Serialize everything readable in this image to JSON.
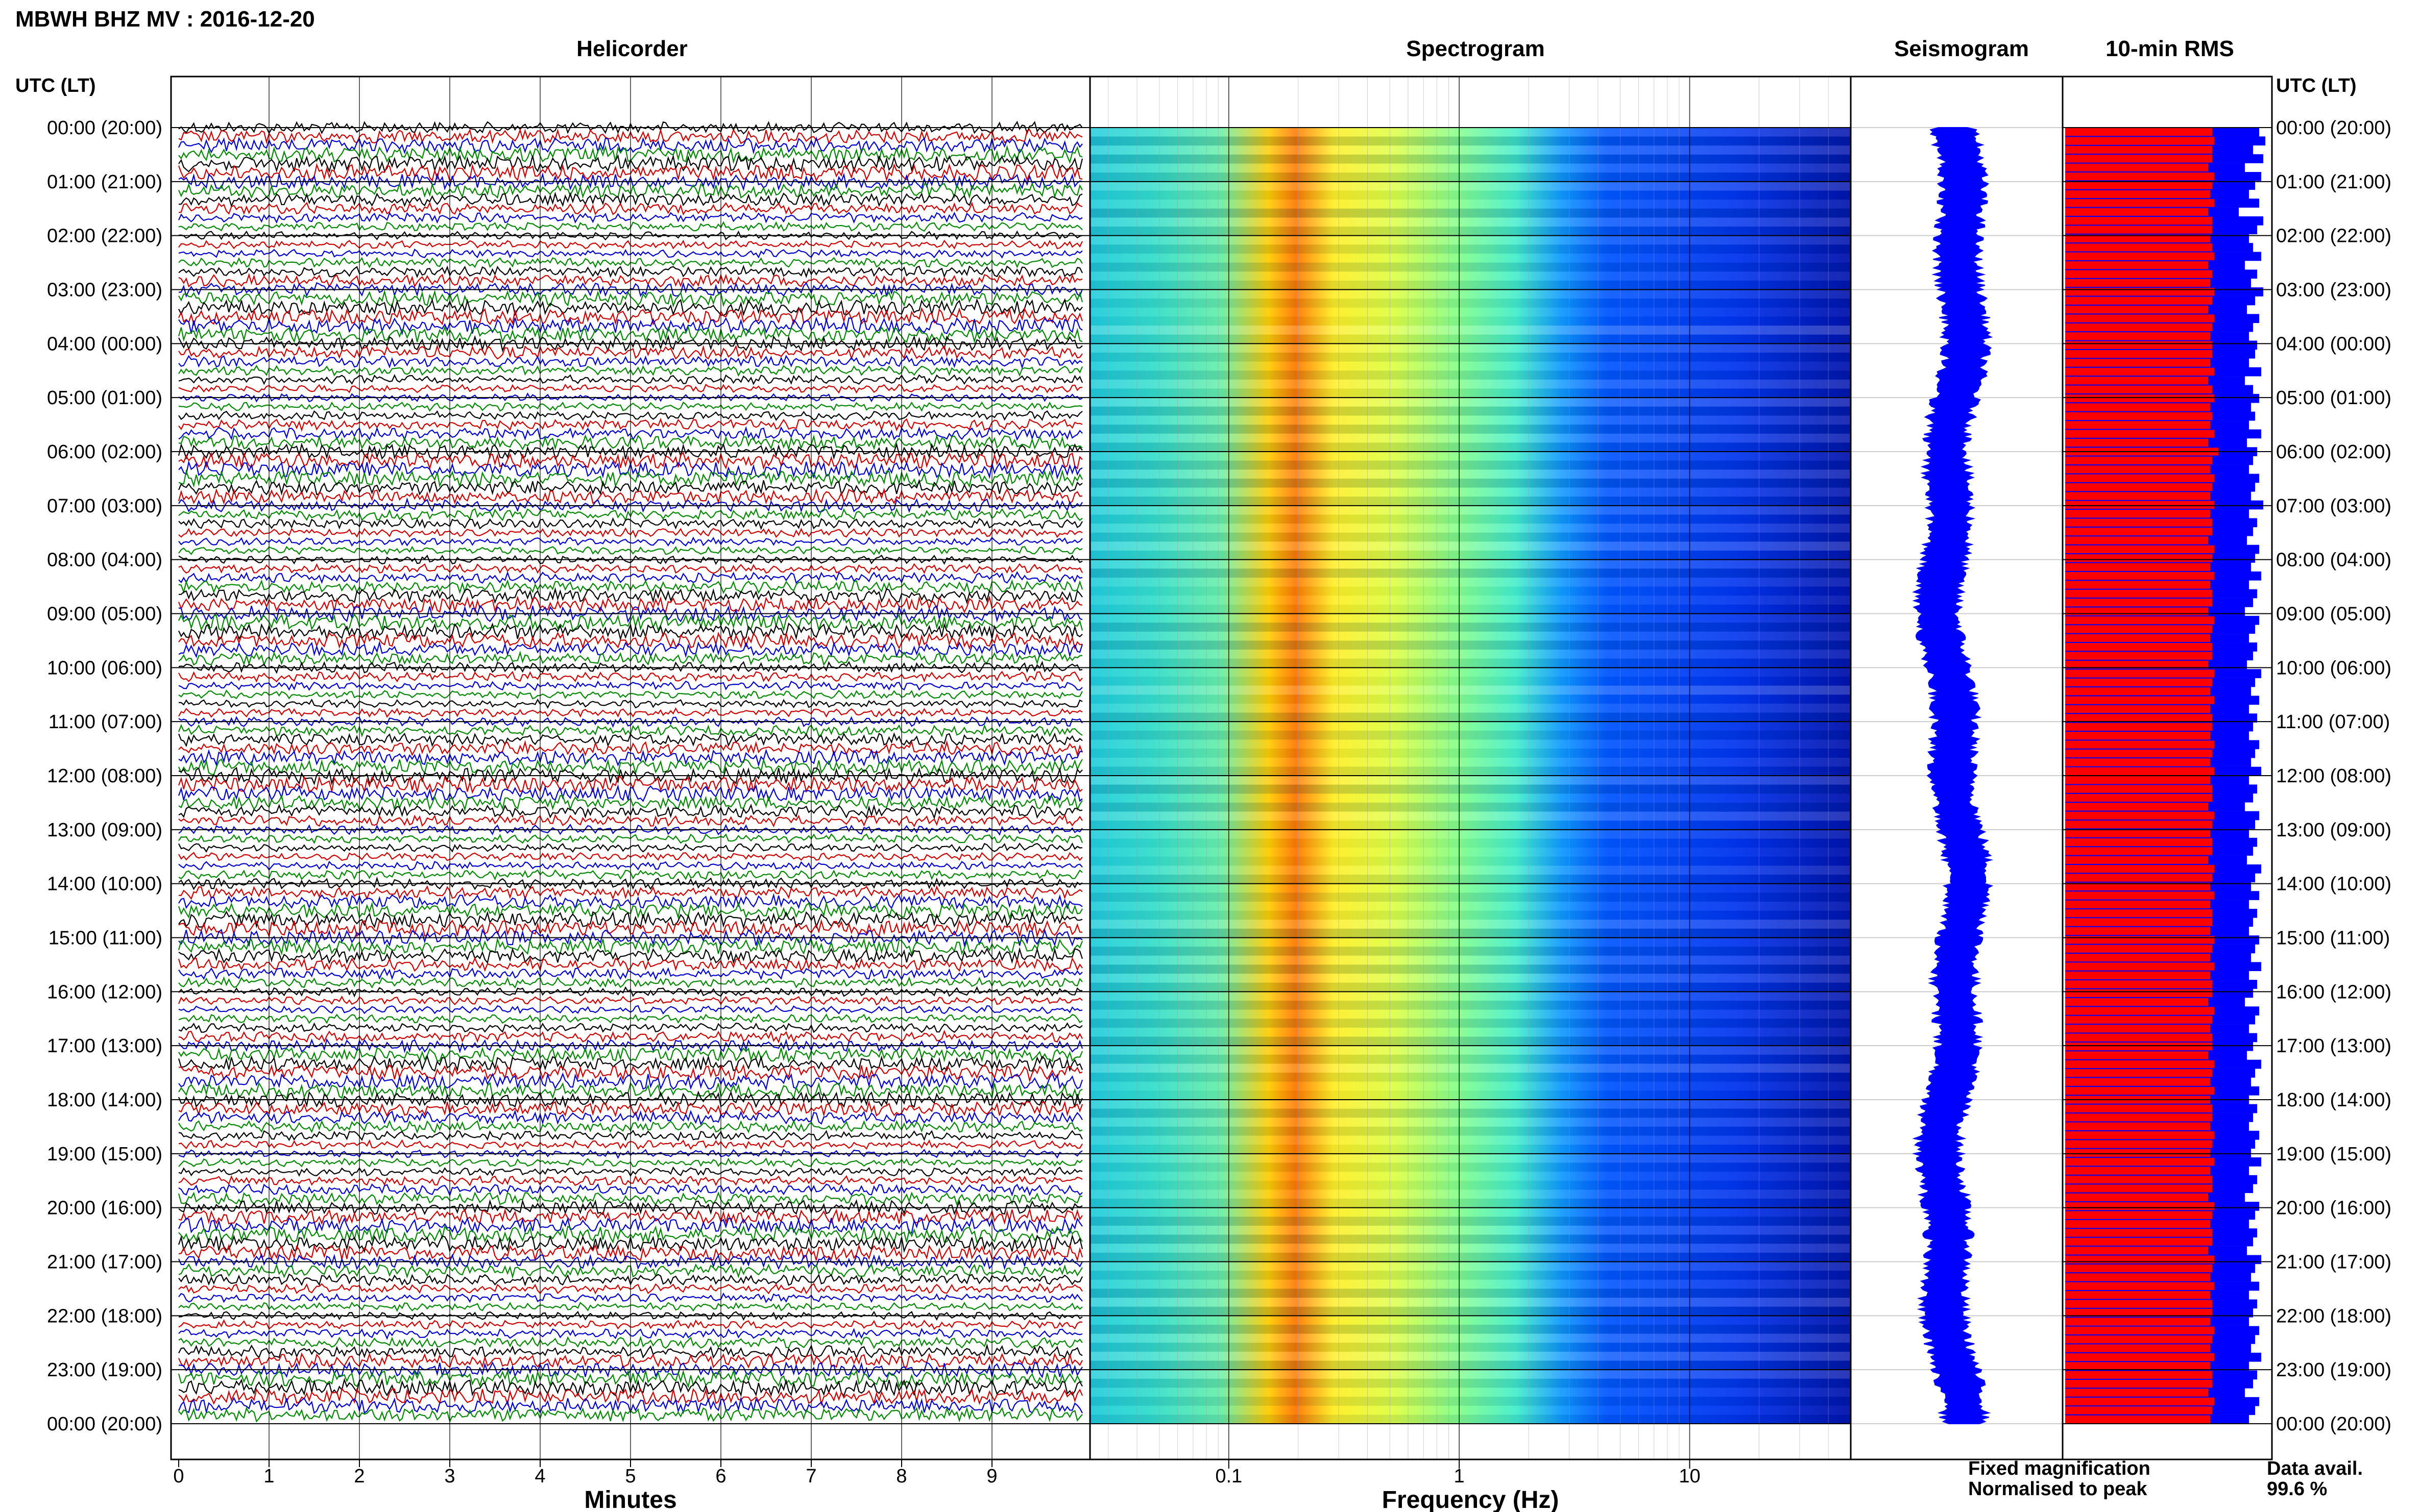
{
  "figure_title": "MBWH BHZ MV : 2016-12-20",
  "chart_data": [
    {
      "type": "line",
      "panel": "helicorder",
      "title": "Helicorder",
      "xlabel": "Minutes",
      "ylabel": "UTC (LT)",
      "xlim": [
        0,
        10
      ],
      "x_ticks": [
        "0",
        "1",
        "2",
        "3",
        "4",
        "5",
        "6",
        "7",
        "8",
        "9"
      ],
      "rows_per_hour": 6,
      "row_minutes": 10,
      "trace_colors": [
        "#000000",
        "#cc0000",
        "#0000cc",
        "#008800"
      ],
      "grid": true
    },
    {
      "type": "heatmap",
      "panel": "spectrogram",
      "title": "Spectrogram",
      "xlabel": "Frequency (Hz)",
      "x_scale": "log",
      "xlim": [
        0.025,
        50
      ],
      "x_ticks": [
        "0.1",
        "1",
        "10"
      ],
      "peak_band_hz": [
        0.16,
        0.35
      ],
      "colormap": [
        "#000088",
        "#0033ff",
        "#00aaff",
        "#00ffcc",
        "#aaff55",
        "#ffee00",
        "#ff8800",
        "#ee0000"
      ]
    },
    {
      "type": "line",
      "panel": "seismogram",
      "title": "Seismogram",
      "color": "#0000ff"
    },
    {
      "type": "bar",
      "panel": "rms",
      "title": "10-min RMS",
      "legend": [
        "Fixed magnification",
        "Normalised to peak"
      ],
      "legend_colors": [
        "#0000ff",
        "#ff0000"
      ],
      "fixed_magnification": [
        0.95,
        0.98,
        0.92,
        0.97,
        0.88,
        0.96,
        0.93,
        0.9,
        0.95,
        0.85,
        0.97,
        0.94,
        0.9,
        0.92,
        0.96,
        0.88,
        0.94,
        0.91,
        0.97,
        0.93,
        0.89,
        0.95,
        0.92,
        0.9,
        0.94,
        0.93,
        0.9,
        0.96,
        0.88,
        0.92,
        0.95,
        0.91,
        0.93,
        0.9,
        0.96,
        0.89,
        0.94,
        0.92,
        0.9,
        0.95,
        0.93,
        0.91,
        0.97,
        0.9,
        0.94,
        0.92,
        0.89,
        0.95,
        0.93,
        0.91,
        0.96,
        0.9,
        0.94,
        0.92,
        0.88,
        0.95,
        0.93,
        0.9,
        0.94,
        0.92,
        0.89,
        0.96,
        0.93,
        0.91,
        0.95,
        0.9,
        0.94,
        0.92,
        0.9,
        0.95,
        0.93,
        0.91,
        0.96,
        0.9,
        0.94,
        0.92,
        0.88,
        0.95,
        0.93,
        0.9,
        0.94,
        0.92,
        0.89,
        0.96,
        0.93,
        0.91,
        0.95,
        0.9,
        0.94,
        0.92,
        0.9,
        0.95,
        0.93,
        0.91,
        0.96,
        0.9,
        0.94,
        0.92,
        0.88,
        0.95,
        0.93,
        0.9,
        0.94,
        0.92,
        0.89,
        0.96,
        0.93,
        0.91,
        0.95,
        0.9,
        0.94,
        0.92,
        0.9,
        0.95,
        0.93,
        0.91,
        0.96,
        0.9,
        0.94,
        0.92,
        0.88,
        0.95,
        0.93,
        0.9,
        0.94,
        0.92,
        0.89,
        0.96,
        0.93,
        0.91,
        0.95,
        0.9,
        0.94,
        0.92,
        0.9,
        0.95,
        0.93,
        0.91,
        0.96,
        0.9,
        0.94,
        0.92,
        0.88,
        0.95,
        0.93,
        0.9
      ],
      "normalised_to_peak": [
        0.72,
        0.73,
        0.72,
        0.72,
        0.7,
        0.73,
        0.72,
        0.71,
        0.73,
        0.7,
        0.72,
        0.72,
        0.71,
        0.72,
        0.73,
        0.7,
        0.72,
        0.71,
        0.73,
        0.72,
        0.7,
        0.73,
        0.72,
        0.71,
        0.72,
        0.72,
        0.71,
        0.73,
        0.7,
        0.72,
        0.73,
        0.71,
        0.72,
        0.71,
        0.73,
        0.7,
        0.75,
        0.72,
        0.71,
        0.73,
        0.72,
        0.71,
        0.73,
        0.71,
        0.72,
        0.72,
        0.7,
        0.73,
        0.72,
        0.71,
        0.73,
        0.71,
        0.72,
        0.72,
        0.7,
        0.73,
        0.72,
        0.71,
        0.72,
        0.72,
        0.7,
        0.73,
        0.72,
        0.71,
        0.73,
        0.71,
        0.72,
        0.72,
        0.71,
        0.73,
        0.72,
        0.71,
        0.73,
        0.71,
        0.72,
        0.72,
        0.7,
        0.73,
        0.72,
        0.71,
        0.72,
        0.72,
        0.7,
        0.73,
        0.72,
        0.71,
        0.73,
        0.71,
        0.72,
        0.72,
        0.71,
        0.73,
        0.72,
        0.71,
        0.73,
        0.71,
        0.72,
        0.72,
        0.7,
        0.73,
        0.72,
        0.71,
        0.72,
        0.72,
        0.7,
        0.73,
        0.72,
        0.71,
        0.73,
        0.71,
        0.72,
        0.72,
        0.71,
        0.73,
        0.72,
        0.71,
        0.73,
        0.71,
        0.72,
        0.72,
        0.7,
        0.73,
        0.72,
        0.71,
        0.72,
        0.72,
        0.7,
        0.73,
        0.72,
        0.71,
        0.73,
        0.71,
        0.72,
        0.72,
        0.71,
        0.73,
        0.72,
        0.71,
        0.73,
        0.71,
        0.72,
        0.72,
        0.7,
        0.73,
        0.72,
        0.71
      ],
      "data_availability_label": "Data avail.",
      "data_availability": "99.6 %"
    }
  ],
  "time_axis": {
    "header": "UTC (LT)",
    "labels": [
      "00:00 (20:00)",
      "01:00 (21:00)",
      "02:00 (22:00)",
      "03:00 (23:00)",
      "04:00 (00:00)",
      "05:00 (01:00)",
      "06:00 (02:00)",
      "07:00 (03:00)",
      "08:00 (04:00)",
      "09:00 (05:00)",
      "10:00 (06:00)",
      "11:00 (07:00)",
      "12:00 (08:00)",
      "13:00 (09:00)",
      "14:00 (10:00)",
      "15:00 (11:00)",
      "16:00 (12:00)",
      "17:00 (13:00)",
      "18:00 (14:00)",
      "19:00 (15:00)",
      "20:00 (16:00)",
      "21:00 (17:00)",
      "22:00 (18:00)",
      "23:00 (19:00)",
      "00:00 (20:00)"
    ]
  }
}
